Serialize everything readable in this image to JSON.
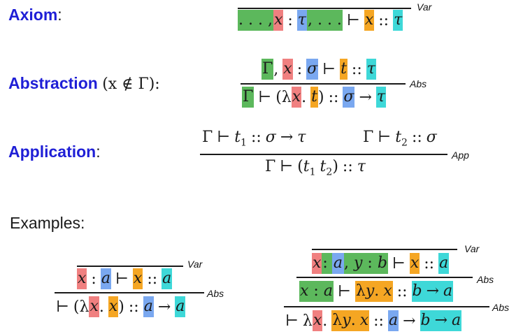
{
  "rules": {
    "axiom": {
      "name": "Axiom",
      "suffix": ":",
      "tag": "Var"
    },
    "abstraction": {
      "name": "Abstraction",
      "side_condition": "(x ∉ Γ):",
      "tag": "Abs"
    },
    "application": {
      "name": "Application",
      "suffix": ":",
      "tag": "App"
    }
  },
  "examples": {
    "title": "Examples:",
    "left": {
      "tag1": "Var",
      "tag2": "Abs"
    },
    "right": {
      "tag1": "Var",
      "tag2": "Abs",
      "tag3": "Abs"
    }
  },
  "colors": {
    "green": "#5cb85c",
    "red": "#f08080",
    "blue": "#7aa8f0",
    "orange": "#f5a623",
    "cyan": "#3ed8d8",
    "label_blue": "#1f1fd6"
  }
}
